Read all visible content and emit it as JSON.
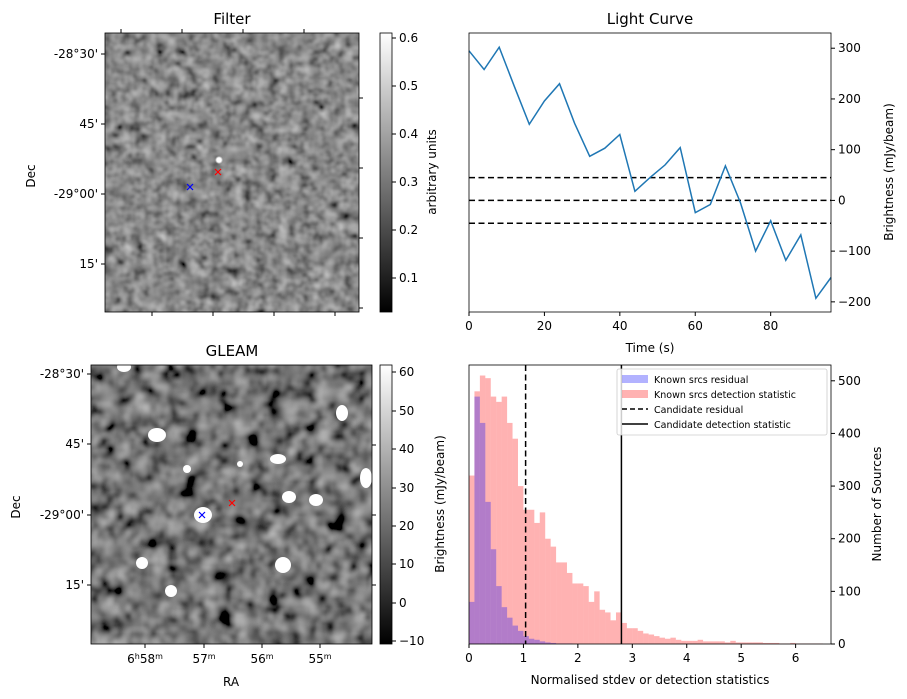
{
  "figure": {
    "panels": [
      {
        "id": "filter",
        "title": "Filter",
        "ylabel": "Dec",
        "yticks": [
          "-28°30'",
          "45'",
          "-29°00'",
          "15'"
        ],
        "colorbar": {
          "label": "arbitrary units",
          "ticks": [
            "0.1",
            "0.2",
            "0.3",
            "0.4",
            "0.5",
            "0.6"
          ],
          "range": [
            0.03,
            0.61
          ],
          "cmap": "gray"
        },
        "markers": [
          {
            "symbol": "x",
            "color": "#0000ff",
            "label": "blue cross"
          },
          {
            "symbol": "x",
            "color": "#ff0000",
            "label": "red cross"
          }
        ]
      },
      {
        "id": "gleam",
        "title": "GLEAM",
        "ylabel": "Dec",
        "xlabel": "RA",
        "yticks": [
          "-28°30'",
          "45'",
          "-29°00'",
          "15'"
        ],
        "xticks": [
          "6h58m",
          "57m",
          "56m",
          "55m"
        ],
        "colorbar": {
          "label": "Brightness (mJy/beam)",
          "ticks": [
            "−10",
            "0",
            "10",
            "20",
            "30",
            "40",
            "50",
            "60"
          ],
          "range": [
            -12,
            61
          ],
          "cmap": "gray"
        },
        "markers": [
          {
            "symbol": "x",
            "color": "#0000ff",
            "label": "blue cross"
          },
          {
            "symbol": "x",
            "color": "#ff0000",
            "label": "red cross"
          }
        ]
      }
    ]
  },
  "chart_data": [
    {
      "type": "line",
      "title": "Light Curve",
      "xlabel": "Time (s)",
      "ylabel": "Brightness (mJy/beam)",
      "xlim": [
        0,
        96
      ],
      "ylim": [
        -220,
        330
      ],
      "xticks": [
        0,
        20,
        40,
        60,
        80
      ],
      "yticks": [
        -200,
        -100,
        0,
        100,
        200,
        300
      ],
      "yaxis_side": "right",
      "series": [
        {
          "name": "light curve",
          "color": "#1f77b4",
          "x": [
            0,
            4,
            8,
            12,
            16,
            20,
            24,
            28,
            32,
            36,
            40,
            44,
            48,
            52,
            56,
            60,
            64,
            68,
            72,
            76,
            80,
            84,
            88,
            92,
            96
          ],
          "y": [
            295,
            258,
            302,
            225,
            150,
            196,
            230,
            152,
            87,
            103,
            130,
            18,
            45,
            70,
            104,
            -24,
            -8,
            68,
            -5,
            -100,
            -40,
            -118,
            -68,
            -193,
            -152
          ]
        }
      ],
      "hlines": [
        {
          "y": 45,
          "style": "dashed",
          "color": "#000000"
        },
        {
          "y": 0,
          "style": "dashed",
          "color": "#000000"
        },
        {
          "y": -45,
          "style": "dashed",
          "color": "#000000"
        }
      ]
    },
    {
      "type": "bar",
      "subtype": "histogram",
      "xlabel": "Normalised stdev or detection statistics",
      "ylabel_left": "Brightness (mJy/beam)",
      "ylabel_right": "Number of Sources",
      "xlim": [
        0,
        6.65
      ],
      "ylim": [
        0,
        530
      ],
      "xticks": [
        0,
        1,
        2,
        3,
        4,
        5,
        6
      ],
      "yticks": [
        0,
        100,
        200,
        300,
        400,
        500
      ],
      "bin_width": 0.1,
      "series": [
        {
          "name": "Known srcs residual",
          "color": "#0000ff",
          "alpha": 0.3,
          "bins_start": 0.0,
          "values": [
            80,
            470,
            420,
            270,
            180,
            110,
            70,
            50,
            35,
            25,
            15,
            10,
            8,
            5,
            3,
            2,
            1,
            1,
            1,
            0
          ]
        },
        {
          "name": "Known srcs detection statistic",
          "color": "#ff0000",
          "alpha": 0.3,
          "bins_start": 0.0,
          "values": [
            320,
            480,
            510,
            505,
            470,
            460,
            470,
            420,
            390,
            300,
            255,
            255,
            230,
            250,
            200,
            185,
            155,
            155,
            135,
            115,
            115,
            110,
            80,
            100,
            65,
            60,
            45,
            60,
            40,
            30,
            30,
            25,
            20,
            18,
            15,
            12,
            10,
            12,
            8,
            6,
            6,
            6,
            8,
            5,
            5,
            5,
            5,
            3,
            6,
            3,
            3,
            3,
            3,
            3,
            2,
            2,
            2,
            1,
            1,
            2,
            1,
            1,
            1,
            1,
            1
          ]
        }
      ],
      "vlines": [
        {
          "name": "Candidate residual",
          "x": 1.04,
          "style": "dashed",
          "color": "#000000"
        },
        {
          "name": "Candidate detection statistic",
          "x": 2.8,
          "style": "solid",
          "color": "#000000"
        }
      ],
      "legend": {
        "position": "top-right",
        "entries": [
          "Known srcs residual",
          "Known srcs detection statistic",
          "Candidate residual",
          "Candidate detection statistic"
        ]
      }
    }
  ]
}
